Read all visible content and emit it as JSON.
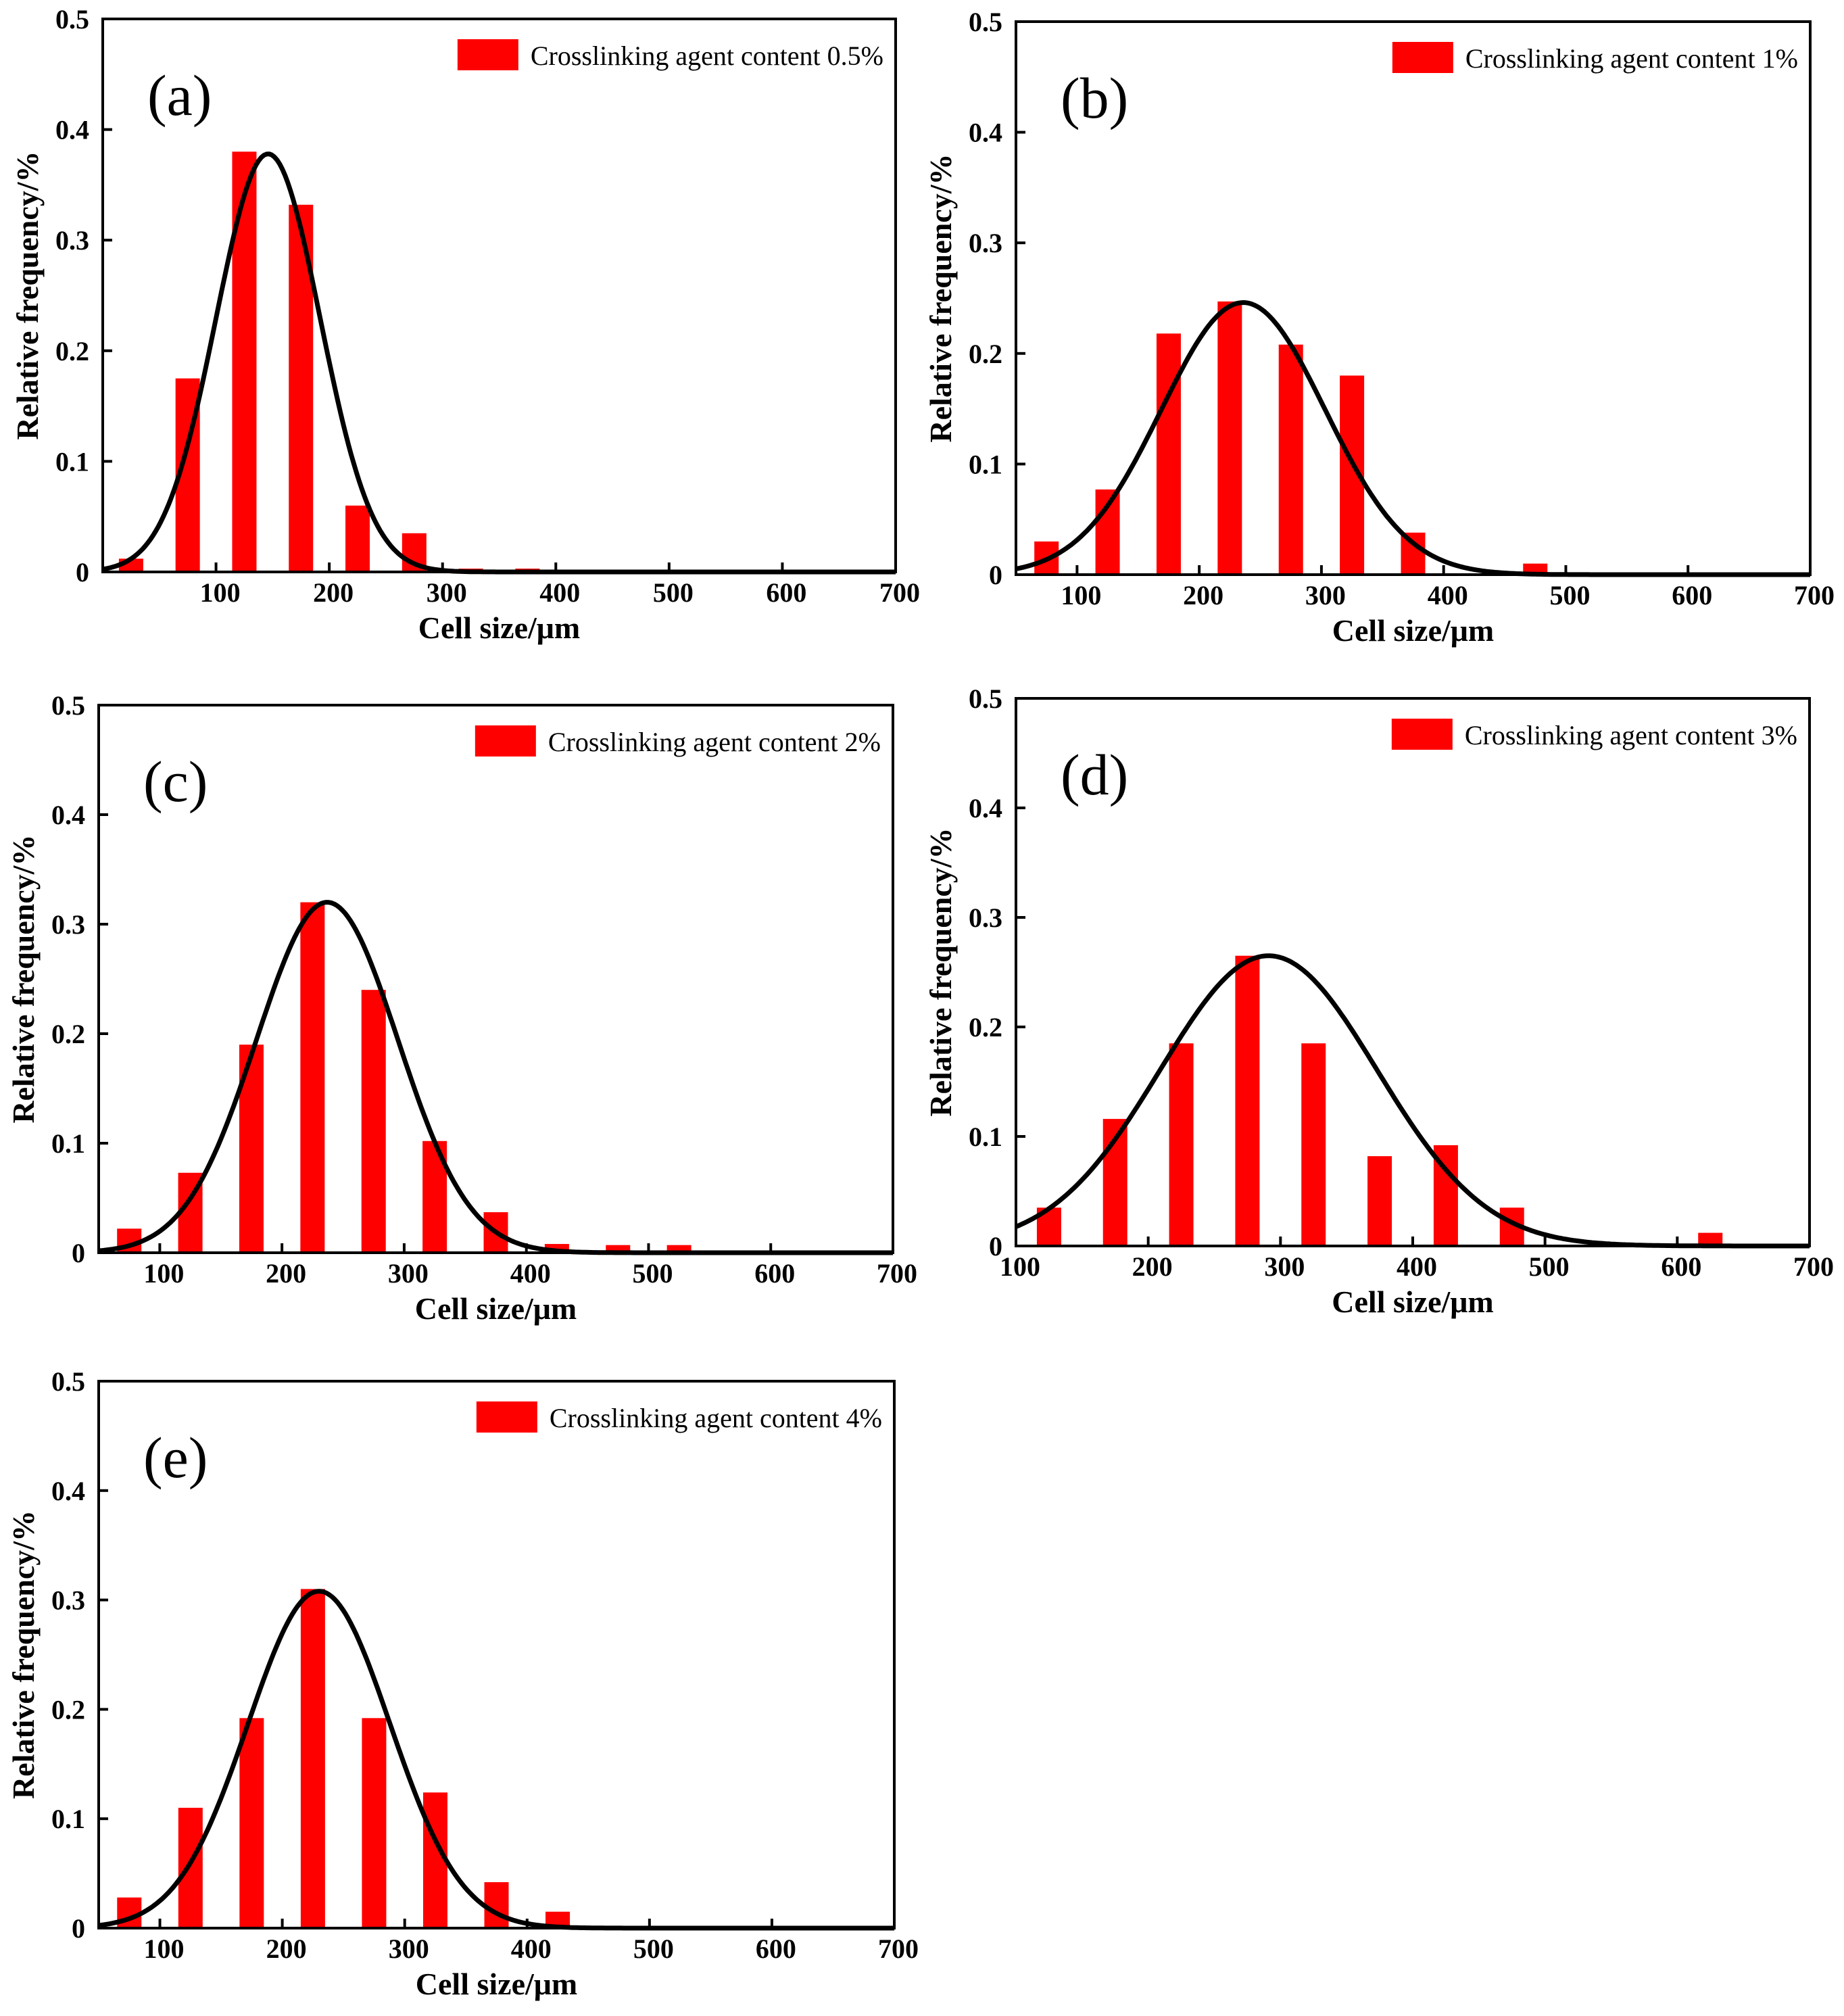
{
  "colors": {
    "bar": "#ff0000",
    "curve": "#000000",
    "axis": "#000000",
    "background": "#ffffff"
  },
  "chart_data": [
    {
      "type": "bar",
      "panel_label": "(a)",
      "legend": "Crosslinking agent content 0.5%",
      "xlabel": "Cell size/μm",
      "ylabel": "Relative frequency/%",
      "xlim": [
        0,
        700
      ],
      "ylim": [
        0,
        0.5
      ],
      "x_ticks": [
        "100",
        "200",
        "300",
        "400",
        "500",
        "600",
        "700"
      ],
      "y_ticks": [
        "0",
        "0.1",
        "0.2",
        "0.3",
        "0.4",
        "0.5"
      ],
      "x": [
        25,
        75,
        125,
        175,
        225,
        275,
        325,
        375
      ],
      "values": [
        0.012,
        0.175,
        0.38,
        0.332,
        0.06,
        0.035,
        0.003,
        0.003
      ],
      "fit": {
        "type": "gaussian",
        "peak": 0.378,
        "mean": 146,
        "sigma": 46
      }
    },
    {
      "type": "bar",
      "panel_label": "(b)",
      "legend": "Crosslinking agent content 1%",
      "xlabel": "Cell size/μm",
      "ylabel": "Relative frequency/%",
      "xlim": [
        50,
        700
      ],
      "ylim": [
        0,
        0.5
      ],
      "x_ticks": [
        "100",
        "200",
        "300",
        "400",
        "500",
        "600",
        "700"
      ],
      "y_ticks": [
        "0",
        "0.1",
        "0.2",
        "0.3",
        "0.4",
        "0.5"
      ],
      "x": [
        75,
        125,
        175,
        225,
        275,
        325,
        375,
        475
      ],
      "values": [
        0.03,
        0.077,
        0.218,
        0.247,
        0.208,
        0.18,
        0.038,
        0.01
      ],
      "fit": {
        "type": "gaussian",
        "peak": 0.246,
        "mean": 236,
        "sigma": 67
      }
    },
    {
      "type": "bar",
      "panel_label": "(c)",
      "legend": "Crosslinking agent content 2%",
      "xlabel": "Cell size/μm",
      "ylabel": "Relative frequency/%",
      "xlim": [
        50,
        700
      ],
      "ylim": [
        0,
        0.5
      ],
      "x_ticks": [
        "100",
        "200",
        "300",
        "400",
        "500",
        "600",
        "700"
      ],
      "y_ticks": [
        "0",
        "0.1",
        "0.2",
        "0.3",
        "0.4",
        "0.5"
      ],
      "x": [
        75,
        125,
        175,
        225,
        275,
        325,
        375,
        425,
        475,
        525
      ],
      "values": [
        0.022,
        0.073,
        0.19,
        0.32,
        0.24,
        0.102,
        0.037,
        0.008,
        0.007,
        0.007
      ],
      "fit": {
        "type": "gaussian",
        "peak": 0.32,
        "mean": 237,
        "sigma": 58
      }
    },
    {
      "type": "bar",
      "panel_label": "(d)",
      "legend": "Crosslinking agent content 3%",
      "xlabel": "Cell size/μm",
      "ylabel": "Relative frequency/%",
      "xlim": [
        100,
        700
      ],
      "ylim": [
        0,
        0.5
      ],
      "x_ticks": [
        "100",
        "200",
        "300",
        "400",
        "500",
        "600",
        "700"
      ],
      "y_ticks": [
        "0",
        "0.1",
        "0.2",
        "0.3",
        "0.4",
        "0.5"
      ],
      "x": [
        125,
        175,
        225,
        275,
        325,
        375,
        425,
        475,
        625
      ],
      "values": [
        0.035,
        0.116,
        0.185,
        0.265,
        0.185,
        0.082,
        0.092,
        0.035,
        0.012
      ],
      "fit": {
        "type": "gaussian",
        "peak": 0.265,
        "mean": 291,
        "sigma": 82
      }
    },
    {
      "type": "bar",
      "panel_label": "(e)",
      "legend": "Crosslinking agent content 4%",
      "xlabel": "Cell size/μm",
      "ylabel": "Relative frequency/%",
      "xlim": [
        50,
        700
      ],
      "ylim": [
        0,
        0.5
      ],
      "x_ticks": [
        "100",
        "200",
        "300",
        "400",
        "500",
        "600",
        "700"
      ],
      "y_ticks": [
        "0",
        "0.1",
        "0.2",
        "0.3",
        "0.4",
        "0.5"
      ],
      "x": [
        75,
        125,
        175,
        225,
        275,
        325,
        375,
        425
      ],
      "values": [
        0.028,
        0.11,
        0.192,
        0.31,
        0.192,
        0.124,
        0.042,
        0.015
      ],
      "fit": {
        "type": "gaussian",
        "peak": 0.308,
        "mean": 230,
        "sigma": 58
      }
    }
  ]
}
